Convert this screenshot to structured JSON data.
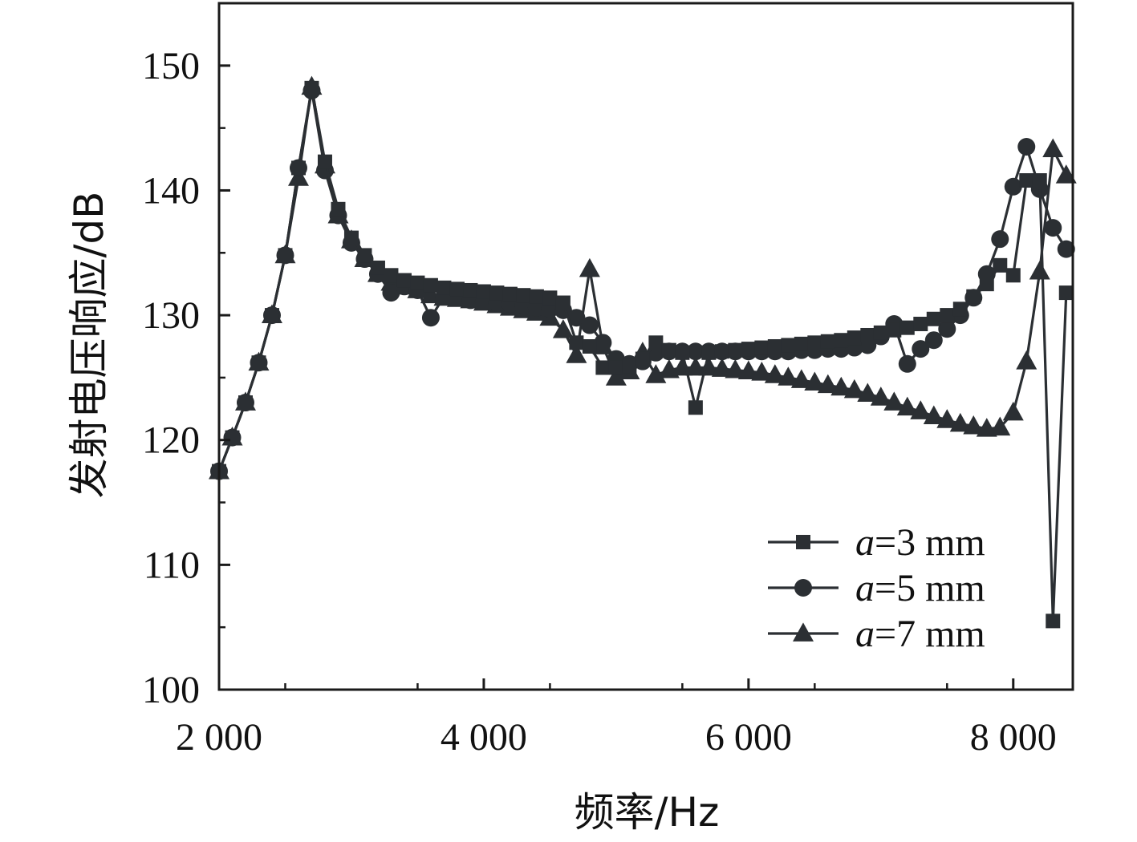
{
  "chart_data": {
    "type": "line",
    "xlabel": "频率/Hz",
    "ylabel": "发射电压响应/dB",
    "xlim": [
      2000,
      8450
    ],
    "ylim": [
      100,
      155
    ],
    "x_ticks": [
      2000,
      4000,
      6000,
      8000
    ],
    "x_tick_labels": [
      "2 000",
      "4 000",
      "6 000",
      "8 000"
    ],
    "y_ticks": [
      100,
      110,
      120,
      130,
      140,
      150
    ],
    "y_tick_labels": [
      "100",
      "110",
      "120",
      "130",
      "140",
      "150"
    ],
    "legend_position": "bottom-right",
    "line_color": "#2b2f33",
    "series": [
      {
        "name": "a=3 mm",
        "label_var": "a",
        "label_rest": "=3 mm",
        "marker": "square",
        "x": [
          2000,
          2100,
          2200,
          2300,
          2400,
          2500,
          2600,
          2700,
          2800,
          2900,
          3000,
          3100,
          3200,
          3300,
          3400,
          3500,
          3600,
          3700,
          3800,
          3900,
          4000,
          4100,
          4200,
          4300,
          4400,
          4500,
          4600,
          4700,
          4800,
          4900,
          5000,
          5100,
          5200,
          5300,
          5400,
          5500,
          5600,
          5700,
          5800,
          5900,
          6000,
          6100,
          6200,
          6300,
          6400,
          6500,
          6600,
          6700,
          6800,
          6900,
          7000,
          7100,
          7200,
          7300,
          7400,
          7500,
          7600,
          7700,
          7800,
          7900,
          8000,
          8100,
          8200,
          8300,
          8400
        ],
        "y": [
          117.5,
          120.2,
          123.0,
          126.2,
          130.0,
          134.8,
          141.8,
          148.2,
          142.3,
          138.5,
          136.2,
          134.8,
          133.8,
          133.2,
          132.8,
          132.6,
          132.4,
          132.2,
          132.1,
          132.0,
          131.9,
          131.8,
          131.7,
          131.6,
          131.5,
          131.4,
          131.0,
          127.8,
          127.5,
          125.8,
          125.8,
          125.9,
          126.5,
          127.8,
          127.2,
          127.0,
          122.6,
          127.0,
          127.1,
          127.2,
          127.3,
          127.4,
          127.5,
          127.6,
          127.7,
          127.8,
          127.9,
          128.0,
          128.2,
          128.4,
          128.6,
          128.8,
          129.0,
          129.3,
          129.7,
          130.0,
          130.5,
          131.5,
          132.5,
          134.0,
          133.2,
          140.8,
          140.8,
          105.5,
          131.8
        ]
      },
      {
        "name": "a=5 mm",
        "label_var": "a",
        "label_rest": "=5 mm",
        "marker": "circle",
        "x": [
          2000,
          2100,
          2200,
          2300,
          2400,
          2500,
          2600,
          2700,
          2800,
          2900,
          3000,
          3100,
          3200,
          3300,
          3400,
          3500,
          3600,
          3700,
          3800,
          3900,
          4000,
          4100,
          4200,
          4300,
          4400,
          4500,
          4600,
          4700,
          4800,
          4900,
          5000,
          5100,
          5200,
          5300,
          5400,
          5500,
          5600,
          5700,
          5800,
          5900,
          6000,
          6100,
          6200,
          6300,
          6400,
          6500,
          6600,
          6700,
          6800,
          6900,
          7000,
          7100,
          7200,
          7300,
          7400,
          7500,
          7600,
          7700,
          7800,
          7900,
          8000,
          8100,
          8200,
          8300,
          8400
        ],
        "y": [
          117.5,
          120.2,
          123.0,
          126.2,
          130.0,
          134.8,
          141.8,
          148.0,
          141.6,
          138.0,
          135.8,
          134.5,
          133.3,
          131.8,
          132.3,
          132.0,
          129.8,
          131.5,
          131.4,
          131.2,
          131.1,
          131.0,
          130.9,
          130.8,
          130.6,
          130.5,
          130.4,
          129.8,
          129.2,
          127.8,
          126.5,
          126.1,
          126.3,
          127.0,
          127.1,
          127.1,
          127.1,
          127.1,
          127.1,
          127.1,
          127.1,
          127.1,
          127.1,
          127.1,
          127.2,
          127.2,
          127.3,
          127.3,
          127.4,
          127.6,
          128.3,
          129.3,
          126.1,
          127.3,
          128.0,
          128.9,
          130.0,
          131.4,
          133.3,
          136.1,
          140.3,
          143.5,
          140.1,
          137.0,
          135.3
        ]
      },
      {
        "name": "a=7 mm",
        "label_var": "a",
        "label_rest": "=7 mm",
        "marker": "triangle",
        "x": [
          2000,
          2100,
          2200,
          2300,
          2400,
          2500,
          2600,
          2700,
          2800,
          2900,
          3000,
          3100,
          3200,
          3300,
          3400,
          3500,
          3600,
          3700,
          3800,
          3900,
          4000,
          4100,
          4200,
          4300,
          4400,
          4500,
          4600,
          4700,
          4800,
          4900,
          5000,
          5100,
          5200,
          5300,
          5400,
          5500,
          5600,
          5700,
          5800,
          5900,
          6000,
          6100,
          6200,
          6300,
          6400,
          6500,
          6600,
          6700,
          6800,
          6900,
          7000,
          7100,
          7200,
          7300,
          7400,
          7500,
          7600,
          7700,
          7800,
          7900,
          8000,
          8100,
          8200,
          8300,
          8400
        ],
        "y": [
          117.5,
          120.2,
          123.0,
          126.2,
          130.0,
          134.8,
          141.0,
          148.3,
          142.0,
          138.0,
          136.0,
          134.5,
          133.3,
          132.6,
          132.3,
          132.0,
          131.6,
          131.4,
          131.3,
          131.2,
          131.0,
          130.8,
          130.6,
          130.4,
          130.2,
          129.8,
          128.8,
          126.8,
          133.7,
          127.5,
          125.0,
          125.5,
          127.0,
          125.2,
          125.6,
          125.8,
          125.8,
          125.8,
          125.7,
          125.6,
          125.5,
          125.4,
          125.2,
          125.0,
          124.8,
          124.6,
          124.4,
          124.2,
          124.0,
          123.7,
          123.4,
          123.0,
          122.6,
          122.3,
          121.9,
          121.6,
          121.3,
          121.1,
          120.9,
          121.0,
          122.2,
          126.3,
          133.5,
          143.3,
          141.2
        ]
      }
    ]
  }
}
